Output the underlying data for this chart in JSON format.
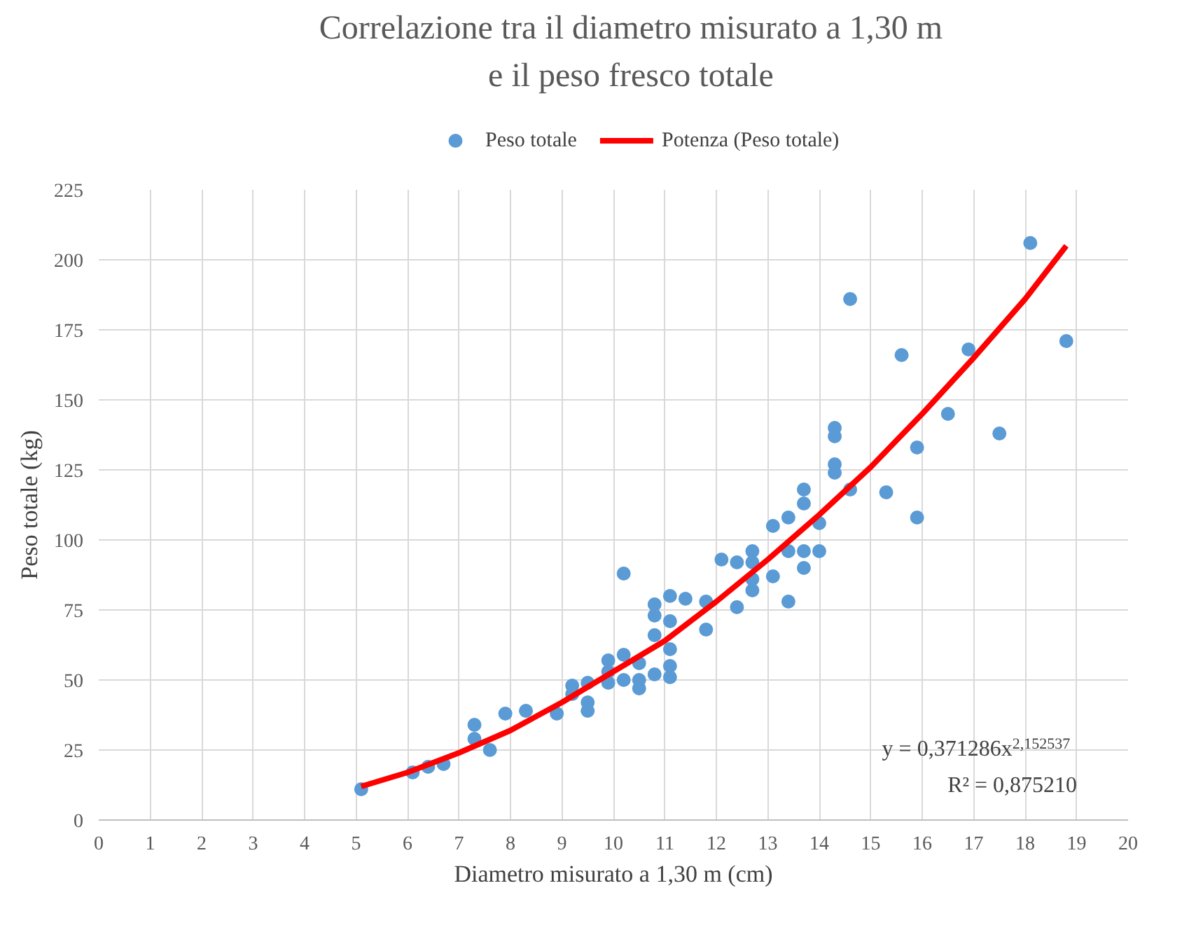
{
  "chart_data": {
    "type": "scatter",
    "title": "Correlazione tra il diametro misurato a 1,30 m\ne il peso fresco totale",
    "xlabel": "Diametro misurato a 1,30 m (cm)",
    "ylabel": "Peso totale (kg)",
    "xlim": [
      0,
      20
    ],
    "xticks": [
      0,
      1,
      2,
      3,
      4,
      5,
      6,
      7,
      8,
      9,
      10,
      11,
      12,
      13,
      14,
      15,
      16,
      17,
      18,
      19,
      20
    ],
    "ylim": [
      0,
      225
    ],
    "yticks": [
      0,
      25,
      50,
      75,
      100,
      125,
      150,
      175,
      200,
      225
    ],
    "grid": true,
    "legend": "top",
    "marker": "circle",
    "series": [
      {
        "name": "Peso totale",
        "color": "#5b9bd5",
        "x": [
          5.1,
          6.1,
          6.4,
          6.7,
          7.3,
          7.3,
          7.6,
          7.9,
          8.3,
          8.9,
          9.2,
          9.2,
          9.5,
          9.5,
          9.5,
          9.9,
          9.9,
          9.9,
          10.2,
          10.2,
          10.2,
          10.5,
          10.5,
          10.5,
          10.8,
          10.8,
          10.8,
          10.8,
          11.1,
          11.1,
          11.1,
          11.1,
          11.1,
          11.4,
          11.8,
          11.8,
          12.1,
          12.4,
          12.4,
          12.7,
          12.7,
          12.7,
          12.7,
          13.1,
          13.1,
          13.4,
          13.4,
          13.4,
          13.7,
          13.7,
          13.7,
          13.7,
          14.0,
          14.0,
          14.3,
          14.3,
          14.3,
          14.3,
          14.6,
          14.6,
          15.3,
          15.6,
          15.9,
          15.9,
          16.5,
          16.9,
          17.5,
          18.1,
          18.8
        ],
        "values": [
          11,
          17,
          19,
          20,
          34,
          29,
          25,
          38,
          39,
          38,
          48,
          45,
          49,
          42,
          39,
          57,
          53,
          49,
          59,
          50,
          88,
          56,
          50,
          47,
          77,
          73,
          66,
          52,
          80,
          71,
          61,
          55,
          51,
          79,
          78,
          68,
          93,
          92,
          76,
          96,
          92,
          86,
          82,
          105,
          87,
          108,
          96,
          78,
          118,
          113,
          96,
          90,
          96,
          106,
          140,
          137,
          127,
          124,
          186,
          118,
          117,
          166,
          133,
          108,
          145,
          168,
          138,
          206,
          171
        ]
      },
      {
        "name": "Potenza (Peso totale)",
        "type": "line",
        "color": "#ff0000",
        "line_style": "solid",
        "marker": "none",
        "x": [
          5.1,
          6,
          7,
          8,
          9,
          10,
          11,
          12,
          13,
          14,
          15,
          16,
          17,
          18,
          18.8
        ],
        "values": [
          12,
          17,
          24,
          32,
          42,
          53,
          64,
          78,
          93,
          109,
          126,
          145,
          165,
          186,
          205
        ]
      }
    ],
    "annotations": [
      "y = 0,371286x$^{2,152537}$",
      "R² = 0,875210"
    ]
  }
}
